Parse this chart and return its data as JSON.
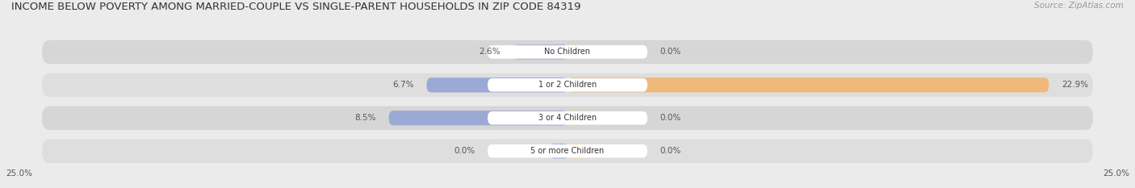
{
  "title": "INCOME BELOW POVERTY AMONG MARRIED-COUPLE VS SINGLE-PARENT HOUSEHOLDS IN ZIP CODE 84319",
  "source": "Source: ZipAtlas.com",
  "categories": [
    "No Children",
    "1 or 2 Children",
    "3 or 4 Children",
    "5 or more Children"
  ],
  "married_values": [
    2.6,
    6.7,
    8.5,
    0.0
  ],
  "single_values": [
    0.0,
    22.9,
    0.0,
    0.0
  ],
  "married_color": "#9aaad4",
  "single_color": "#f0b87a",
  "single_color_light": "#f5d4a8",
  "axis_max": 25.0,
  "axis_label_left": "25.0%",
  "axis_label_right": "25.0%",
  "bg_color": "#ebebeb",
  "bar_bg_color_odd": "#d8d8d8",
  "bar_bg_color_even": "#e2e2e2",
  "title_fontsize": 9.5,
  "source_fontsize": 7.5,
  "bar_label_fontsize": 7.5,
  "category_fontsize": 7,
  "legend_fontsize": 7.5
}
